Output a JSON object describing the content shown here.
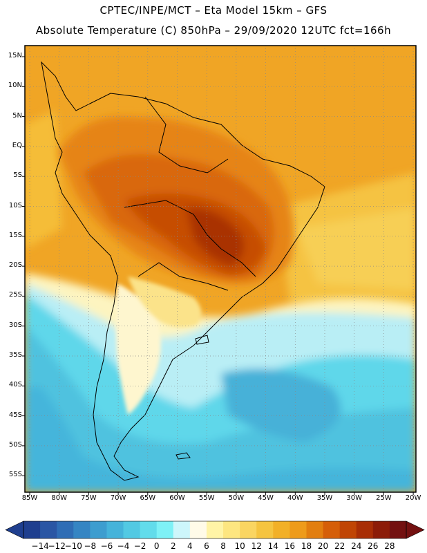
{
  "header": {
    "line1": "CPTEC/INPE/MCT –  Eta Model 15km – GFS",
    "line2": "Absolute Temperature (C) 850hPa – 29/09/2020 12UTC fct=166h"
  },
  "lat_labels": [
    "15N",
    "10N",
    "5N",
    "EQ",
    "5S",
    "10S",
    "15S",
    "20S",
    "25S",
    "30S",
    "35S",
    "40S",
    "45S",
    "50S",
    "55S"
  ],
  "lon_labels": [
    "85W",
    "80W",
    "75W",
    "70W",
    "65W",
    "60W",
    "55W",
    "50W",
    "45W",
    "40W",
    "35W",
    "30W",
    "25W",
    "20W"
  ],
  "colorbar": {
    "labels": [
      "−14",
      "−12",
      "−10",
      "−8",
      "−6",
      "−4",
      "−2",
      "0",
      "2",
      "4",
      "6",
      "8",
      "10",
      "12",
      "14",
      "16",
      "18",
      "20",
      "22",
      "24",
      "26",
      "28"
    ],
    "colors": [
      "#1f3f8f",
      "#2a56a4",
      "#2f6db5",
      "#3585c3",
      "#3d9dcf",
      "#45b3da",
      "#52c9e3",
      "#62dceb",
      "#7ef1f6",
      "#cdf6fb",
      "#fffbe8",
      "#fff4a6",
      "#fde680",
      "#fad561",
      "#f5c440",
      "#f2b027",
      "#ee9b1a",
      "#e27e0f",
      "#d55e08",
      "#c04505",
      "#a82e06",
      "#8c1c08",
      "#731010"
    ]
  }
}
